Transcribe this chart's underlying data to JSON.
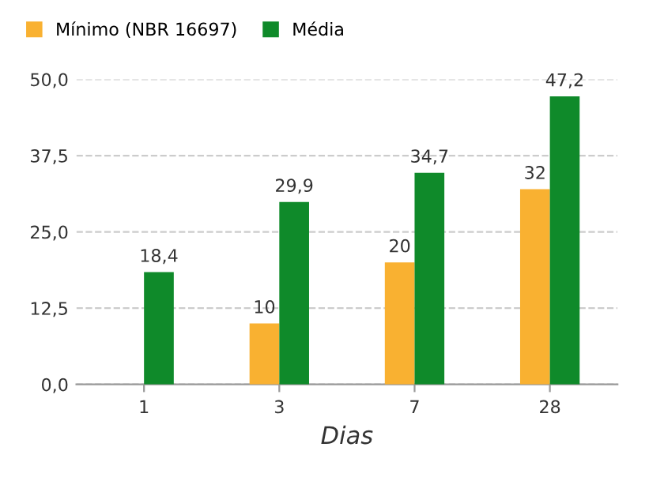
{
  "chart_data": {
    "type": "bar",
    "xlabel": "Dias",
    "categories": [
      "1",
      "3",
      "7",
      "28"
    ],
    "series": [
      {
        "name": "Mínimo (NBR 16697)",
        "color": "#f9b131",
        "values": [
          null,
          10,
          20,
          32
        ],
        "value_labels": [
          null,
          "10",
          "20",
          "32"
        ]
      },
      {
        "name": "Média",
        "color": "#0f8a2a",
        "values": [
          18.4,
          29.9,
          34.7,
          47.2
        ],
        "value_labels": [
          "18,4",
          "29,9",
          "34,7",
          "47,2"
        ]
      }
    ],
    "ylim": [
      0,
      50
    ],
    "yticks": [
      {
        "value": 0,
        "label": "0,0"
      },
      {
        "value": 12.5,
        "label": "12,5"
      },
      {
        "value": 25,
        "label": "25,0"
      },
      {
        "value": 37.5,
        "label": "37,5"
      },
      {
        "value": 50,
        "label": "50,0"
      }
    ],
    "grid": "y",
    "legend": "top left"
  }
}
